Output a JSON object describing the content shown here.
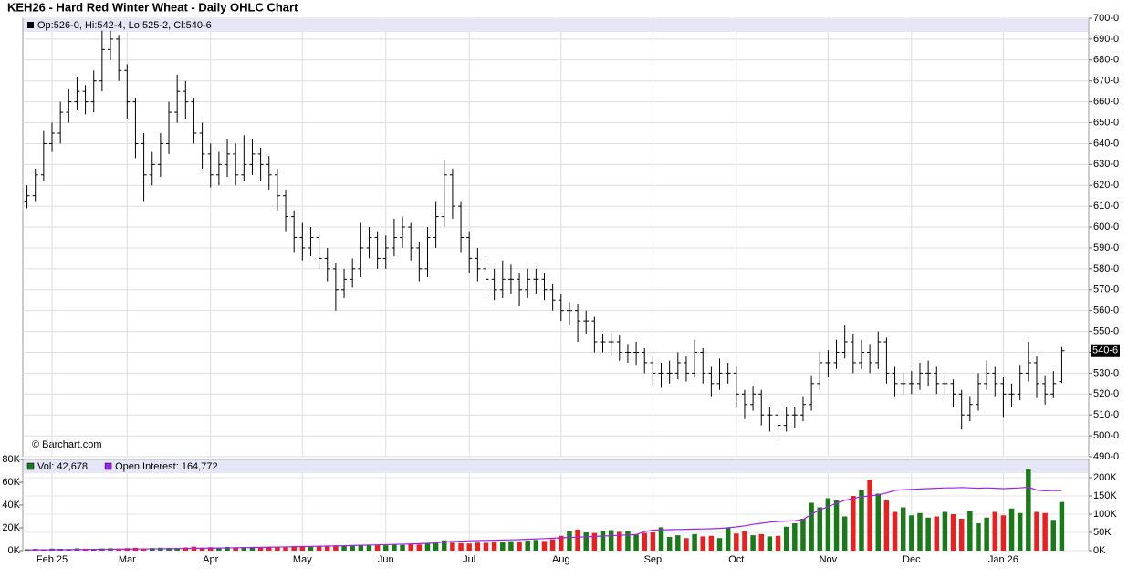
{
  "chart_data": [
    {
      "type": "ohlc",
      "title": "KEH26 - Hard Red Winter Wheat - Daily OHLC Chart",
      "ohlc_label": "Op:526-0, Hi:542-4, Lo:525-2, Cl:540-6",
      "last_label": "540-6",
      "credit": "© Barchart.com",
      "color": "#000000",
      "grid": true,
      "categories": [
        null,
        null,
        null,
        "Feb 25",
        null,
        null,
        null,
        null,
        null,
        null,
        null,
        null,
        "Mar",
        null,
        null,
        null,
        null,
        null,
        null,
        null,
        null,
        null,
        "Apr",
        null,
        null,
        null,
        null,
        null,
        null,
        null,
        null,
        null,
        null,
        "May",
        null,
        null,
        null,
        null,
        null,
        null,
        null,
        null,
        null,
        "Jun",
        null,
        null,
        null,
        null,
        null,
        null,
        null,
        null,
        null,
        "Jul",
        null,
        null,
        null,
        null,
        null,
        null,
        null,
        null,
        null,
        null,
        "Aug",
        null,
        null,
        null,
        null,
        null,
        null,
        null,
        null,
        null,
        null,
        "Sep",
        null,
        null,
        null,
        null,
        null,
        null,
        null,
        null,
        null,
        "Oct",
        null,
        null,
        null,
        null,
        null,
        null,
        null,
        null,
        null,
        null,
        "Nov",
        null,
        null,
        null,
        null,
        null,
        null,
        null,
        null,
        null,
        "Dec",
        null,
        null,
        null,
        null,
        null,
        null,
        null,
        null,
        null,
        null,
        "Jan 26",
        null,
        null,
        null,
        null,
        null,
        null,
        null
      ],
      "open": [
        612,
        615,
        625,
        640,
        645,
        655,
        660,
        665,
        660,
        670,
        685,
        690,
        675,
        660,
        640,
        625,
        630,
        640,
        655,
        665,
        660,
        645,
        635,
        625,
        630,
        635,
        625,
        630,
        635,
        630,
        625,
        615,
        605,
        595,
        590,
        595,
        585,
        580,
        570,
        575,
        580,
        590,
        595,
        585,
        590,
        595,
        600,
        590,
        580,
        595,
        605,
        625,
        610,
        595,
        585,
        580,
        575,
        570,
        575,
        575,
        570,
        575,
        575,
        570,
        565,
        560,
        560,
        555,
        555,
        545,
        545,
        545,
        540,
        540,
        540,
        535,
        530,
        530,
        530,
        535,
        530,
        540,
        530,
        525,
        530,
        530,
        520,
        515,
        520,
        510,
        510,
        505,
        510,
        510,
        515,
        525,
        535,
        535,
        540,
        545,
        535,
        540,
        535,
        545,
        530,
        525,
        525,
        525,
        530,
        530,
        525,
        525,
        520,
        510,
        515,
        525,
        530,
        525,
        520,
        520,
        530,
        535,
        525,
        520,
        526
      ],
      "high": [
        620,
        628,
        646,
        650,
        660,
        666,
        672,
        668,
        675,
        694,
        694,
        692,
        678,
        662,
        645,
        636,
        645,
        660,
        673,
        670,
        662,
        650,
        640,
        636,
        642,
        640,
        644,
        642,
        638,
        634,
        628,
        618,
        608,
        602,
        600,
        598,
        590,
        583,
        580,
        585,
        602,
        600,
        598,
        596,
        604,
        605,
        602,
        593,
        600,
        612,
        632,
        628,
        612,
        598,
        590,
        584,
        580,
        584,
        582,
        578,
        580,
        580,
        578,
        573,
        568,
        564,
        563,
        560,
        557,
        549,
        549,
        548,
        544,
        545,
        542,
        538,
        535,
        536,
        540,
        538,
        546,
        542,
        533,
        537,
        535,
        533,
        522,
        524,
        522,
        514,
        512,
        514,
        514,
        519,
        529,
        540,
        541,
        546,
        553,
        549,
        546,
        544,
        550,
        547,
        533,
        530,
        531,
        535,
        536,
        533,
        529,
        527,
        522,
        519,
        530,
        536,
        533,
        528,
        525,
        534,
        545,
        538,
        529,
        531,
        542.5
      ],
      "low": [
        609,
        612,
        622,
        636,
        640,
        650,
        656,
        654,
        655,
        665,
        680,
        670,
        652,
        633,
        612,
        620,
        624,
        635,
        650,
        652,
        640,
        628,
        619,
        620,
        624,
        620,
        622,
        625,
        622,
        618,
        608,
        598,
        588,
        584,
        586,
        580,
        574,
        560,
        566,
        571,
        576,
        585,
        580,
        580,
        586,
        590,
        584,
        574,
        576,
        590,
        600,
        604,
        588,
        578,
        574,
        568,
        565,
        566,
        568,
        562,
        566,
        568,
        565,
        560,
        555,
        553,
        545,
        549,
        540,
        540,
        538,
        536,
        535,
        534,
        530,
        524,
        523,
        525,
        527,
        526,
        528,
        525,
        519,
        522,
        525,
        514,
        508,
        512,
        505,
        502,
        499,
        502,
        504,
        507,
        512,
        522,
        528,
        532,
        537,
        530,
        532,
        530,
        532,
        525,
        519,
        520,
        520,
        522,
        524,
        520,
        519,
        514,
        503,
        507,
        512,
        522,
        519,
        509,
        514,
        517,
        526,
        518,
        515,
        518,
        525.25
      ],
      "close": [
        615,
        625,
        640,
        645,
        655,
        660,
        665,
        660,
        670,
        685,
        690,
        675,
        660,
        640,
        625,
        630,
        640,
        655,
        665,
        660,
        645,
        635,
        625,
        630,
        635,
        625,
        630,
        635,
        630,
        625,
        615,
        605,
        595,
        590,
        595,
        585,
        580,
        570,
        575,
        580,
        590,
        595,
        585,
        590,
        595,
        600,
        590,
        580,
        595,
        605,
        625,
        610,
        595,
        585,
        580,
        575,
        570,
        575,
        575,
        570,
        575,
        575,
        570,
        565,
        560,
        560,
        555,
        555,
        545,
        545,
        545,
        540,
        540,
        540,
        535,
        530,
        530,
        530,
        535,
        530,
        540,
        530,
        525,
        530,
        530,
        520,
        515,
        520,
        510,
        510,
        505,
        510,
        510,
        515,
        525,
        535,
        535,
        540,
        545,
        535,
        540,
        535,
        545,
        530,
        525,
        525,
        525,
        530,
        530,
        525,
        525,
        520,
        510,
        515,
        525,
        530,
        525,
        520,
        520,
        530,
        535,
        525,
        520,
        525,
        540.75
      ],
      "ylim": [
        490,
        700
      ],
      "yticks": [
        {
          "value": 490,
          "label": "490-0"
        },
        {
          "value": 500,
          "label": "500-0"
        },
        {
          "value": 510,
          "label": "510-0"
        },
        {
          "value": 520,
          "label": "520-0"
        },
        {
          "value": 530,
          "label": "530-0"
        },
        {
          "value": 540,
          "label": "540-0"
        },
        {
          "value": 550,
          "label": "550-0"
        },
        {
          "value": 560,
          "label": "560-0"
        },
        {
          "value": 570,
          "label": "570-0"
        },
        {
          "value": 580,
          "label": "580-0"
        },
        {
          "value": 590,
          "label": "590-0"
        },
        {
          "value": 600,
          "label": "600-0"
        },
        {
          "value": 610,
          "label": "610-0"
        },
        {
          "value": 620,
          "label": "620-0"
        },
        {
          "value": 630,
          "label": "630-0"
        },
        {
          "value": 640,
          "label": "640-0"
        },
        {
          "value": 650,
          "label": "650-0"
        },
        {
          "value": 660,
          "label": "660-0"
        },
        {
          "value": 670,
          "label": "670-0"
        },
        {
          "value": 680,
          "label": "680-0"
        },
        {
          "value": 690,
          "label": "690-0"
        },
        {
          "value": 700,
          "label": "700-0"
        }
      ]
    },
    {
      "type": "bar",
      "series": [
        {
          "name": "Vol: 42,678",
          "color": "#1a7a1a",
          "down_color": "#e82020",
          "values": [
            1200,
            1500,
            1300,
            1800,
            1600,
            1400,
            2000,
            1700,
            1500,
            1900,
            2100,
            1800,
            2200,
            2500,
            2000,
            2300,
            2600,
            2400,
            2200,
            2800,
            3500,
            2600,
            3000,
            2800,
            3200,
            2900,
            3100,
            3300,
            2700,
            3400,
            3600,
            3200,
            3900,
            4100,
            3500,
            4200,
            3800,
            4600,
            4000,
            4300,
            4800,
            4500,
            5200,
            4700,
            5500,
            5000,
            5800,
            5400,
            6000,
            6500,
            9000,
            7000,
            6500,
            6200,
            7000,
            6800,
            7400,
            7900,
            8300,
            7600,
            8800,
            9400,
            8500,
            10000,
            13000,
            17000,
            18500,
            16000,
            15500,
            17500,
            18000,
            16500,
            17000,
            14000,
            15500,
            16000,
            20500,
            12000,
            13500,
            11000,
            14500,
            12500,
            13000,
            11000,
            20000,
            15000,
            17000,
            13500,
            14500,
            12500,
            13000,
            21000,
            24000,
            28000,
            42000,
            38000,
            46000,
            44000,
            30000,
            48000,
            53000,
            62000,
            50000,
            44000,
            34000,
            38000,
            31000,
            33000,
            29000,
            30000,
            34000,
            32000,
            28000,
            35000,
            24000,
            29000,
            34000,
            31000,
            37000,
            33000,
            72000,
            34000,
            33000,
            27000,
            42678
          ]
        },
        {
          "name": "Open Interest: 164,772",
          "color": "#a020f0",
          "axis": "y2",
          "values": [
            2000,
            2100,
            2300,
            2500,
            2700,
            2900,
            3100,
            3300,
            3500,
            3700,
            3900,
            4100,
            4300,
            4500,
            4700,
            4900,
            5100,
            5300,
            5600,
            5900,
            6200,
            6500,
            6800,
            7100,
            7400,
            7800,
            8200,
            8600,
            9000,
            9400,
            9800,
            10200,
            10600,
            11000,
            11500,
            12000,
            12500,
            13000,
            13500,
            14000,
            14600,
            15200,
            15800,
            16400,
            17000,
            17600,
            18200,
            19000,
            20000,
            21000,
            24000,
            25000,
            26000,
            27000,
            27500,
            28000,
            28500,
            29000,
            29500,
            30000,
            31000,
            32000,
            33000,
            34000,
            35000,
            36000,
            37000,
            38000,
            39000,
            40000,
            41000,
            42000,
            43000,
            44000,
            52000,
            56000,
            57000,
            57500,
            58000,
            58500,
            59000,
            59500,
            60000,
            61000,
            63000,
            65000,
            68000,
            72000,
            75000,
            78000,
            80000,
            81000,
            82000,
            85000,
            100000,
            112000,
            120000,
            130000,
            138000,
            143000,
            148000,
            150000,
            153000,
            158000,
            165000,
            167000,
            168000,
            169000,
            170000,
            171000,
            172000,
            172000,
            173000,
            172000,
            171000,
            172000,
            171000,
            170000,
            171000,
            172000,
            174000,
            166000,
            164000,
            165000,
            164772
          ]
        }
      ],
      "ylim": [
        0,
        80000
      ],
      "yticks": [
        {
          "value": 0,
          "label": "0K"
        },
        {
          "value": 20000,
          "label": "20K"
        },
        {
          "value": 40000,
          "label": "40K"
        },
        {
          "value": 60000,
          "label": "60K"
        },
        {
          "value": 80000,
          "label": "80K"
        }
      ],
      "y2lim": [
        0,
        250000
      ],
      "y2ticks": [
        {
          "value": 0,
          "label": "0K"
        },
        {
          "value": 50000,
          "label": "50K"
        },
        {
          "value": 100000,
          "label": "100K"
        },
        {
          "value": 150000,
          "label": "150K"
        },
        {
          "value": 200000,
          "label": "200K"
        }
      ]
    }
  ]
}
